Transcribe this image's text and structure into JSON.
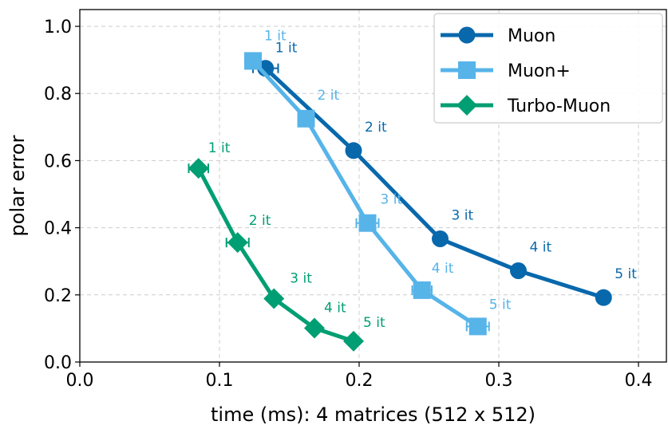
{
  "chart_data": {
    "type": "line",
    "title": "",
    "xlabel": "time (ms): 4 matrices (512 x 512)",
    "ylabel": "polar error",
    "xlim": [
      0.0,
      0.42
    ],
    "ylim": [
      0.0,
      1.05
    ],
    "xticks": [
      0.0,
      0.1,
      0.2,
      0.3,
      0.4
    ],
    "xtick_labels": [
      "0.0",
      "0.1",
      "0.2",
      "0.3",
      "0.4"
    ],
    "yticks": [
      0.0,
      0.2,
      0.4,
      0.6,
      0.8,
      1.0
    ],
    "ytick_labels": [
      "0.0",
      "0.2",
      "0.4",
      "0.6",
      "0.8",
      "1.0"
    ],
    "grid": true,
    "legend_position": "top-right",
    "series": [
      {
        "name": "Muon",
        "color": "#0868ac",
        "marker": "circle",
        "x": [
          0.133,
          0.196,
          0.258,
          0.314,
          0.375
        ],
        "y": [
          0.875,
          0.63,
          0.367,
          0.272,
          0.192
        ],
        "xerr": [
          0.009,
          0.004,
          0.004,
          0.003,
          0.002
        ],
        "labels": [
          "1 it",
          "2 it",
          "3 it",
          "4 it",
          "5 it"
        ]
      },
      {
        "name": "Muon+",
        "color": "#56b4e9",
        "marker": "square",
        "x": [
          0.124,
          0.162,
          0.206,
          0.245,
          0.285
        ],
        "y": [
          0.897,
          0.725,
          0.414,
          0.214,
          0.106
        ],
        "xerr": [
          0.005,
          0.003,
          0.008,
          0.007,
          0.008
        ],
        "labels": [
          "1 it",
          "2 it",
          "3 it",
          "4 it",
          "5 it"
        ]
      },
      {
        "name": "Turbo-Muon",
        "color": "#009e73",
        "marker": "diamond",
        "x": [
          0.085,
          0.113,
          0.139,
          0.168,
          0.196
        ],
        "y": [
          0.577,
          0.356,
          0.189,
          0.101,
          0.062
        ],
        "xerr": [
          0.007,
          0.008,
          0.003,
          0.002,
          0.002
        ],
        "labels": [
          "1 it",
          "2 it",
          "3 it",
          "4 it",
          "5 it"
        ]
      }
    ]
  }
}
